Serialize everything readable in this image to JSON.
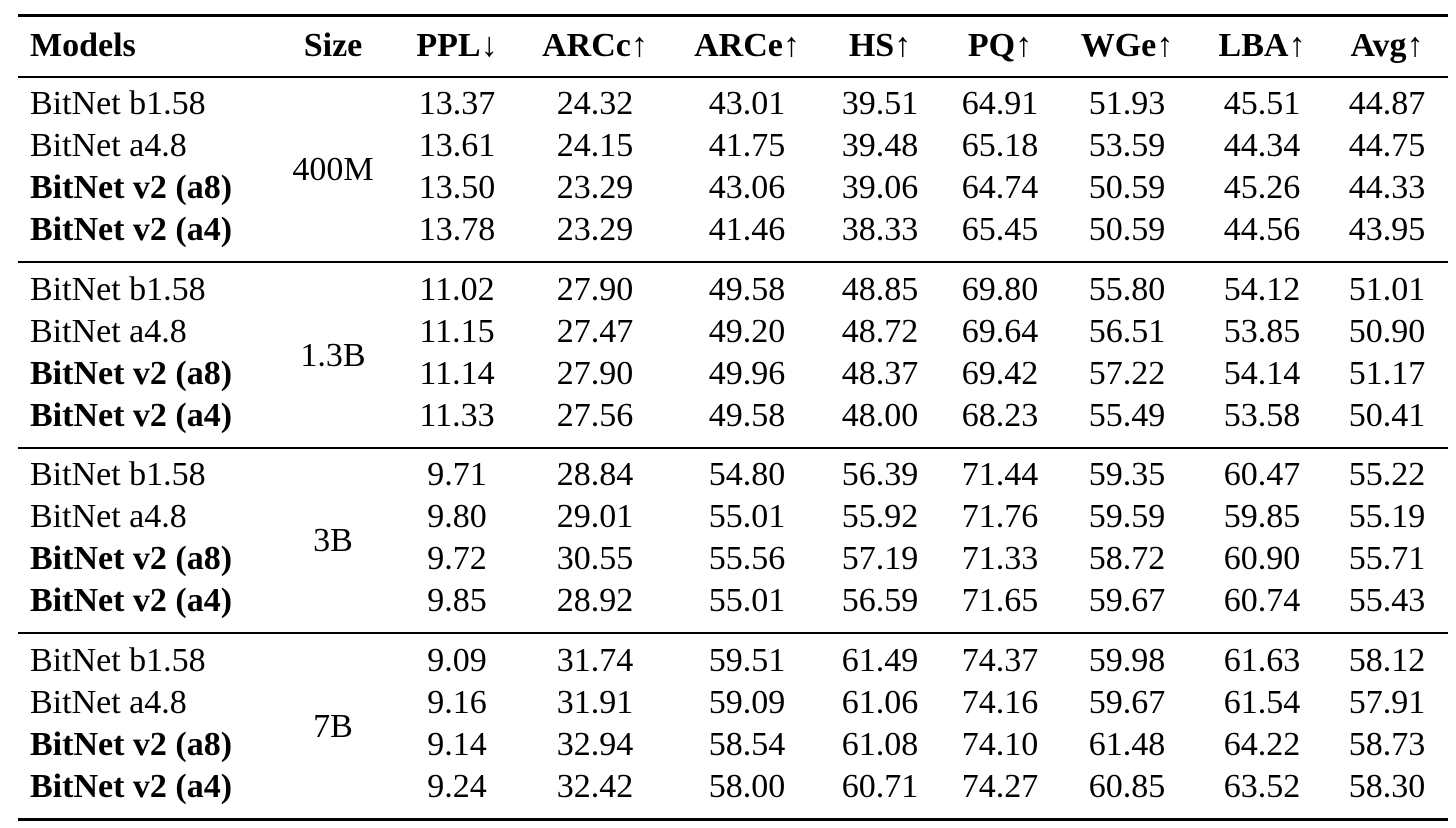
{
  "table": {
    "header": [
      "Models",
      "Size",
      "PPL↓",
      "ARCc↑",
      "ARCe↑",
      "HS↑",
      "PQ↑",
      "WGe↑",
      "LBA↑",
      "Avg↑"
    ],
    "groups": [
      {
        "size": "400M",
        "rows": [
          [
            "BitNet b1.58",
            "13.37",
            "24.32",
            "43.01",
            "39.51",
            "64.91",
            "51.93",
            "45.51",
            "44.87"
          ],
          [
            "BitNet a4.8",
            "13.61",
            "24.15",
            "41.75",
            "39.48",
            "65.18",
            "53.59",
            "44.34",
            "44.75"
          ],
          [
            "BitNet v2 (a8)",
            "13.50",
            "23.29",
            "43.06",
            "39.06",
            "64.74",
            "50.59",
            "45.26",
            "44.33"
          ],
          [
            "BitNet v2 (a4)",
            "13.78",
            "23.29",
            "41.46",
            "38.33",
            "65.45",
            "50.59",
            "44.56",
            "43.95"
          ]
        ]
      },
      {
        "size": "1.3B",
        "rows": [
          [
            "BitNet b1.58",
            "11.02",
            "27.90",
            "49.58",
            "48.85",
            "69.80",
            "55.80",
            "54.12",
            "51.01"
          ],
          [
            "BitNet a4.8",
            "11.15",
            "27.47",
            "49.20",
            "48.72",
            "69.64",
            "56.51",
            "53.85",
            "50.90"
          ],
          [
            "BitNet v2 (a8)",
            "11.14",
            "27.90",
            "49.96",
            "48.37",
            "69.42",
            "57.22",
            "54.14",
            "51.17"
          ],
          [
            "BitNet v2 (a4)",
            "11.33",
            "27.56",
            "49.58",
            "48.00",
            "68.23",
            "55.49",
            "53.58",
            "50.41"
          ]
        ]
      },
      {
        "size": "3B",
        "rows": [
          [
            "BitNet b1.58",
            "9.71",
            "28.84",
            "54.80",
            "56.39",
            "71.44",
            "59.35",
            "60.47",
            "55.22"
          ],
          [
            "BitNet a4.8",
            "9.80",
            "29.01",
            "55.01",
            "55.92",
            "71.76",
            "59.59",
            "59.85",
            "55.19"
          ],
          [
            "BitNet v2 (a8)",
            "9.72",
            "30.55",
            "55.56",
            "57.19",
            "71.33",
            "58.72",
            "60.90",
            "55.71"
          ],
          [
            "BitNet v2 (a4)",
            "9.85",
            "28.92",
            "55.01",
            "56.59",
            "71.65",
            "59.67",
            "60.74",
            "55.43"
          ]
        ]
      },
      {
        "size": "7B",
        "rows": [
          [
            "BitNet b1.58",
            "9.09",
            "31.74",
            "59.51",
            "61.49",
            "74.37",
            "59.98",
            "61.63",
            "58.12"
          ],
          [
            "BitNet a4.8",
            "9.16",
            "31.91",
            "59.09",
            "61.06",
            "74.16",
            "59.67",
            "61.54",
            "57.91"
          ],
          [
            "BitNet v2 (a8)",
            "9.14",
            "32.94",
            "58.54",
            "61.08",
            "74.10",
            "61.48",
            "64.22",
            "58.73"
          ],
          [
            "BitNet v2 (a4)",
            "9.24",
            "32.42",
            "58.00",
            "60.71",
            "74.27",
            "60.85",
            "63.52",
            "58.30"
          ]
        ]
      }
    ]
  }
}
